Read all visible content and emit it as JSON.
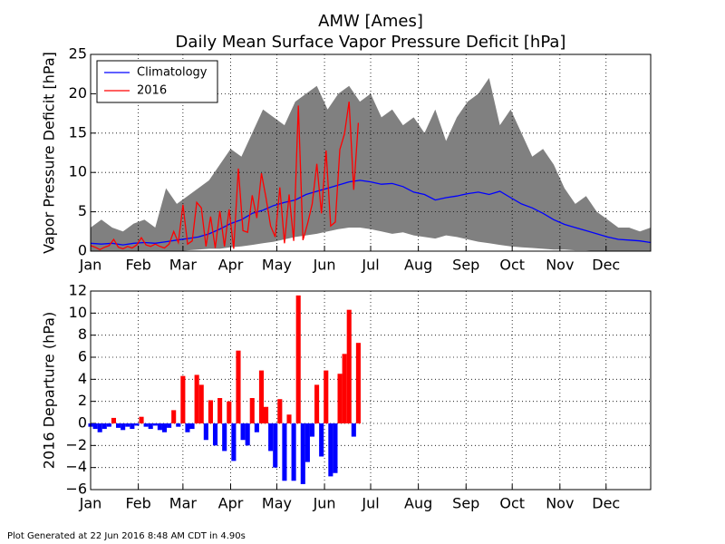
{
  "chart_data": [
    {
      "type": "line",
      "title": "AMW [Ames]",
      "subtitle": "Daily Mean Surface Vapor Pressure Deficit [hPa]",
      "ylabel": "Vapor Pressure Deficit [hPa]",
      "xlim": [
        1,
        365
      ],
      "xticks": [
        {
          "value": 1,
          "label": "Jan"
        },
        {
          "value": 32,
          "label": "Feb"
        },
        {
          "value": 61,
          "label": "Mar"
        },
        {
          "value": 92,
          "label": "Apr"
        },
        {
          "value": 122,
          "label": "May"
        },
        {
          "value": 153,
          "label": "Jun"
        },
        {
          "value": 183,
          "label": "Jul"
        },
        {
          "value": 214,
          "label": "Aug"
        },
        {
          "value": 245,
          "label": "Sep"
        },
        {
          "value": 275,
          "label": "Oct"
        },
        {
          "value": 306,
          "label": "Nov"
        },
        {
          "value": 336,
          "label": "Dec"
        }
      ],
      "ylim": [
        0,
        25
      ],
      "yticks": [
        0,
        5,
        10,
        15,
        20,
        25
      ],
      "grid": true,
      "legend": "upper left",
      "band": {
        "color": "#808080",
        "x": [
          1,
          8,
          15,
          22,
          29,
          36,
          43,
          50,
          57,
          64,
          71,
          78,
          85,
          92,
          99,
          106,
          113,
          120,
          127,
          134,
          141,
          148,
          155,
          162,
          169,
          176,
          183,
          190,
          197,
          204,
          211,
          218,
          225,
          232,
          239,
          246,
          253,
          260,
          267,
          274,
          281,
          288,
          295,
          302,
          309,
          316,
          323,
          330,
          337,
          344,
          351,
          358,
          365
        ],
        "upper": [
          3,
          4,
          3,
          2.5,
          3.5,
          4,
          3,
          8,
          6,
          7,
          8,
          9,
          11,
          13,
          12,
          15,
          18,
          17,
          16,
          19,
          20,
          21,
          18,
          20,
          21,
          19,
          20,
          17,
          18,
          16,
          17,
          15,
          18,
          14,
          17,
          19,
          20,
          22,
          16,
          18,
          15,
          12,
          13,
          11,
          8,
          6,
          7,
          5,
          4,
          3,
          3,
          2.5,
          3
        ],
        "lower": [
          0,
          0,
          0,
          0,
          0,
          0,
          0,
          0,
          0,
          0.1,
          0.2,
          0.3,
          0.3,
          0.5,
          0.6,
          0.8,
          1.0,
          1.2,
          1.5,
          1.8,
          2.0,
          2.2,
          2.5,
          2.8,
          3.0,
          3.0,
          2.8,
          2.5,
          2.2,
          2.4,
          2.0,
          1.8,
          1.6,
          2.0,
          1.8,
          1.5,
          1.2,
          1.0,
          0.8,
          0.6,
          0.5,
          0.4,
          0.3,
          0.2,
          0.2,
          0.1,
          0.1,
          0,
          0,
          0,
          0,
          0,
          0
        ]
      },
      "series": [
        {
          "name": "Climatology",
          "color": "#0000ff",
          "x": [
            1,
            8,
            15,
            22,
            29,
            36,
            43,
            50,
            57,
            64,
            71,
            78,
            85,
            92,
            99,
            106,
            113,
            120,
            127,
            134,
            141,
            148,
            155,
            162,
            169,
            176,
            183,
            190,
            197,
            204,
            211,
            218,
            225,
            232,
            239,
            246,
            253,
            260,
            267,
            274,
            281,
            288,
            295,
            302,
            309,
            316,
            323,
            330,
            337,
            344,
            351,
            358,
            365
          ],
          "values": [
            1.0,
            0.9,
            1.0,
            0.8,
            1.0,
            1.1,
            1.0,
            1.2,
            1.4,
            1.6,
            1.8,
            2.2,
            2.8,
            3.5,
            4.0,
            4.8,
            5.2,
            5.8,
            6.2,
            6.5,
            7.2,
            7.6,
            8.0,
            8.4,
            8.8,
            9.0,
            8.8,
            8.5,
            8.6,
            8.2,
            7.5,
            7.2,
            6.5,
            6.8,
            7.0,
            7.3,
            7.5,
            7.2,
            7.6,
            6.8,
            6.0,
            5.5,
            4.8,
            4.0,
            3.4,
            3.0,
            2.6,
            2.2,
            1.8,
            1.5,
            1.4,
            1.3,
            1.1
          ]
        },
        {
          "name": "2016",
          "color": "#ff0000",
          "x": [
            1,
            4,
            7,
            10,
            13,
            16,
            19,
            22,
            25,
            28,
            31,
            34,
            37,
            40,
            43,
            46,
            49,
            52,
            55,
            58,
            61,
            64,
            67,
            70,
            73,
            76,
            79,
            82,
            85,
            88,
            91,
            94,
            97,
            100,
            103,
            106,
            109,
            112,
            115,
            118,
            121,
            124,
            127,
            130,
            133,
            136,
            139,
            142,
            145,
            148,
            151,
            154,
            157,
            160,
            163,
            166,
            169,
            172,
            175
          ],
          "values": [
            0.7,
            0.5,
            0.2,
            0.5,
            0.7,
            1.5,
            0.5,
            0.3,
            0.6,
            0.4,
            0.8,
            1.7,
            0.8,
            0.6,
            0.9,
            0.6,
            0.4,
            0.9,
            2.5,
            1.1,
            5.9,
            0.9,
            1.3,
            6.2,
            5.5,
            0.6,
            4.4,
            0.4,
            5.1,
            0.6,
            5.3,
            0.3,
            10.5,
            2.6,
            2.4,
            7.1,
            4.2,
            9.9,
            6.8,
            3.2,
            1.8,
            8.1,
            1.0,
            7.2,
            1.3,
            18.5,
            1.4,
            3.5,
            6.0,
            11.1,
            4.8,
            12.8,
            3.2,
            3.7,
            12.9,
            14.9,
            19.0,
            7.8,
            16.3
          ]
        }
      ]
    },
    {
      "type": "bar",
      "ylabel": "2016 Departure (hPa)",
      "xlim": [
        1,
        365
      ],
      "xticks": [
        {
          "value": 1,
          "label": "Jan"
        },
        {
          "value": 32,
          "label": "Feb"
        },
        {
          "value": 61,
          "label": "Mar"
        },
        {
          "value": 92,
          "label": "Apr"
        },
        {
          "value": 122,
          "label": "May"
        },
        {
          "value": 153,
          "label": "Jun"
        },
        {
          "value": 183,
          "label": "Jul"
        },
        {
          "value": 214,
          "label": "Aug"
        },
        {
          "value": 245,
          "label": "Sep"
        },
        {
          "value": 275,
          "label": "Oct"
        },
        {
          "value": 306,
          "label": "Nov"
        },
        {
          "value": 336,
          "label": "Dec"
        }
      ],
      "ylim": [
        -6,
        12
      ],
      "yticks": [
        {
          "value": -6,
          "label": "−6"
        },
        {
          "value": -4,
          "label": "−4"
        },
        {
          "value": -2,
          "label": "−2"
        },
        0,
        2,
        4,
        6,
        8,
        10,
        12
      ],
      "grid": true,
      "positive_color": "#ff0000",
      "negative_color": "#0000ff",
      "x": [
        1,
        4,
        7,
        10,
        13,
        16,
        19,
        22,
        25,
        28,
        31,
        34,
        37,
        40,
        43,
        46,
        49,
        52,
        55,
        58,
        61,
        64,
        67,
        70,
        73,
        76,
        79,
        82,
        85,
        88,
        91,
        94,
        97,
        100,
        103,
        106,
        109,
        112,
        115,
        118,
        121,
        124,
        127,
        130,
        133,
        136,
        139,
        142,
        145,
        148,
        151,
        154,
        157,
        160,
        163,
        166,
        169,
        172,
        175
      ],
      "values": [
        -0.3,
        -0.5,
        -0.8,
        -0.5,
        -0.3,
        0.5,
        -0.4,
        -0.6,
        -0.3,
        -0.5,
        -0.2,
        0.6,
        -0.3,
        -0.5,
        -0.2,
        -0.6,
        -0.8,
        -0.4,
        1.2,
        -0.3,
        4.3,
        -0.8,
        -0.5,
        4.4,
        3.5,
        -1.5,
        2.1,
        -2.0,
        2.3,
        -2.5,
        2.0,
        -3.4,
        6.6,
        -1.5,
        -2.0,
        2.3,
        -0.8,
        4.8,
        1.5,
        -2.5,
        -4.0,
        2.2,
        -5.2,
        0.8,
        -5.2,
        11.6,
        -5.5,
        -3.5,
        -1.2,
        3.5,
        -3.0,
        4.8,
        -4.8,
        -4.5,
        4.5,
        6.3,
        10.3,
        -1.2,
        7.3
      ]
    }
  ],
  "footer": "Plot Generated at 22 Jun 2016 8:48 AM CDT in 4.90s"
}
